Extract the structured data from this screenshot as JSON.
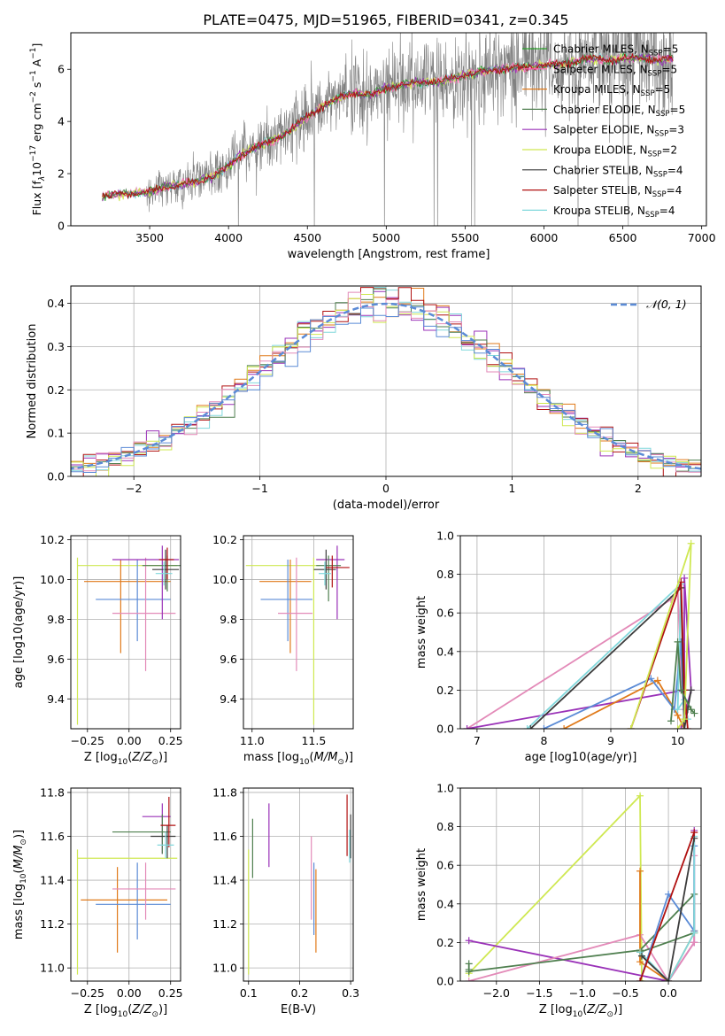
{
  "figure": {
    "title": "PLATE=0475, MJD=51965, FIBERID=0341, z=0.345"
  },
  "colors": {
    "chabrier_miles": "#2ca02c",
    "salpeter_miles": "#ff69b4",
    "kroupa_miles": "#e07a1a",
    "chabrier_elodie": "#4f7f4f",
    "salpeter_elodie": "#9a32b8",
    "kroupa_elodie": "#cfe852",
    "chabrier_stelib": "#3c3c3c",
    "salpeter_stelib": "#b01010",
    "kroupa_stelib": "#80d8dc",
    "blue": "#5b8bd6",
    "pink": "#e38ab8",
    "data": "#808080",
    "normal": "#5b8bd6"
  },
  "chart_data": [
    {
      "type": "line",
      "id": "spectrum",
      "xlabel": "wavelength [Angstrom, rest frame]",
      "ylabel": "Flux [f$_\\lambda$10$^{-17}$ erg cm$^{-2}$ s$^{-1}$ A$^{-1}$]",
      "xlim": [
        3000,
        7030
      ],
      "ylim": [
        0,
        7.4
      ],
      "xticks": [
        "3500",
        "4000",
        "4500",
        "5000",
        "5500",
        "6000",
        "6500",
        "7000"
      ],
      "yticks": [
        "0",
        "2",
        "4",
        "6"
      ],
      "legend_position": "top-right",
      "legend": [
        {
          "name": "Chabrier MILES, N",
          "sub": "SSP",
          "tail": "=5"
        },
        {
          "name": "Salpeter MILES, N",
          "sub": "SSP",
          "tail": "=5"
        },
        {
          "name": "Kroupa MILES, N",
          "sub": "SSP",
          "tail": "=5"
        },
        {
          "name": "Chabrier ELODIE, N",
          "sub": "SSP",
          "tail": "=5"
        },
        {
          "name": "Salpeter ELODIE, N",
          "sub": "SSP",
          "tail": "=3"
        },
        {
          "name": "Kroupa ELODIE, N",
          "sub": "SSP",
          "tail": "=2"
        },
        {
          "name": "Chabrier STELIB, N",
          "sub": "SSP",
          "tail": "=4"
        },
        {
          "name": "Salpeter STELIB, N",
          "sub": "SSP",
          "tail": "=4"
        },
        {
          "name": "Kroupa STELIB, N",
          "sub": "SSP",
          "tail": "=4"
        }
      ],
      "model_continuum": {
        "x": [
          3200,
          3300,
          3400,
          3500,
          3600,
          3700,
          3800,
          3900,
          4000,
          4100,
          4200,
          4300,
          4400,
          4500,
          4600,
          4700,
          4800,
          4900,
          5000,
          5100,
          5200,
          5300,
          5400,
          5500,
          5600,
          5700,
          5800,
          5900,
          6000,
          6100,
          6200,
          6300,
          6400,
          6500,
          6600,
          6700,
          6800
        ],
        "y": [
          1.15,
          1.2,
          1.25,
          1.3,
          1.5,
          1.6,
          1.7,
          1.9,
          2.3,
          2.8,
          3.1,
          3.3,
          3.7,
          4.2,
          4.6,
          4.9,
          5.1,
          5.0,
          5.3,
          5.4,
          5.5,
          5.5,
          5.6,
          5.8,
          5.9,
          6.0,
          6.05,
          6.1,
          6.15,
          6.2,
          6.3,
          6.4,
          6.35,
          6.4,
          6.45,
          6.35,
          6.4
        ]
      }
    },
    {
      "type": "bar",
      "id": "residuals",
      "xlabel": "(data-model)/error",
      "ylabel": "Normed distribution",
      "xlim": [
        -2.5,
        2.5
      ],
      "ylim": [
        0,
        0.44
      ],
      "xticks": [
        "−2",
        "−1",
        "0",
        "1",
        "2"
      ],
      "yticks": [
        "0.0",
        "0.1",
        "0.2",
        "0.3",
        "0.4"
      ],
      "legend_position": "top-right",
      "legend": [
        {
          "name": "𝒩(0, 1)"
        }
      ],
      "bin_width": 0.1
    },
    {
      "type": "scatter",
      "id": "age-vs-Z",
      "xlabel": "Z [log",
      "xlabel_parts": [
        "Z [log",
        "10",
        "(",
        "Z/Z",
        "⊙",
        ")]"
      ],
      "ylabel_parts": [
        "age  [log",
        "10",
        "(",
        "age/yr",
        ")]"
      ],
      "xlim": [
        -0.35,
        0.31
      ],
      "ylim": [
        9.25,
        10.22
      ],
      "xticks": [
        "−0.25",
        "0.00",
        "0.25"
      ],
      "yticks": [
        "9.4",
        "9.6",
        "9.8",
        "10.0",
        "10.2"
      ],
      "points": [
        {
          "x": -0.31,
          "y": 10.07,
          "xerr": [
            0.0,
            0.6
          ],
          "yerr": [
            0.8,
            0.04
          ],
          "c": "kroupa_elodie"
        },
        {
          "x": -0.05,
          "y": 9.99,
          "xerr": [
            0.22,
            0.3
          ],
          "yerr": [
            0.36,
            0.11
          ],
          "c": "kroupa_miles"
        },
        {
          "x": 0.05,
          "y": 9.9,
          "xerr": [
            0.25,
            0.2
          ],
          "yerr": [
            0.21,
            0.2
          ],
          "c": "blue"
        },
        {
          "x": 0.1,
          "y": 9.83,
          "xerr": [
            0.2,
            0.18
          ],
          "yerr": [
            0.29,
            0.28
          ],
          "c": "pink"
        },
        {
          "x": 0.2,
          "y": 10.1,
          "xerr": [
            0.3,
            0.1
          ],
          "yerr": [
            0.3,
            0.07
          ],
          "c": "salpeter_elodie"
        },
        {
          "x": 0.23,
          "y": 10.07,
          "xerr": [
            0.15,
            0.1
          ],
          "yerr": [
            0.13,
            0.05
          ],
          "c": "chabrier_elodie"
        },
        {
          "x": 0.22,
          "y": 10.05,
          "xerr": [
            0.08,
            0.08
          ],
          "yerr": [
            0.1,
            0.1
          ],
          "c": "chabrier_stelib"
        },
        {
          "x": 0.23,
          "y": 10.1,
          "xerr": [
            0.05,
            0.04
          ],
          "yerr": [
            0.1,
            0.06
          ],
          "c": "salpeter_stelib"
        },
        {
          "x": 0.21,
          "y": 10.03,
          "xerr": [
            0.05,
            0.05
          ],
          "yerr": [
            0.06,
            0.06
          ],
          "c": "kroupa_stelib"
        }
      ]
    },
    {
      "type": "scatter",
      "id": "age-vs-mass",
      "xlabel_parts": [
        "mass [log",
        "10",
        "(",
        "M/M",
        "⊙",
        ")]"
      ],
      "xlim": [
        10.93,
        11.82
      ],
      "ylim": [
        9.25,
        10.22
      ],
      "xticks": [
        "11.0",
        "11.5"
      ],
      "yticks": [
        "9.4",
        "9.6",
        "9.8",
        "10.0",
        "10.2"
      ],
      "points": [
        {
          "x": 11.5,
          "y": 10.07,
          "xerr": [
            0.55,
            0.05
          ],
          "yerr": [
            0.8,
            0.04
          ],
          "c": "kroupa_elodie"
        },
        {
          "x": 11.31,
          "y": 9.99,
          "xerr": [
            0.25,
            0.17
          ],
          "yerr": [
            0.36,
            0.11
          ],
          "c": "kroupa_miles"
        },
        {
          "x": 11.29,
          "y": 9.9,
          "xerr": [
            0.22,
            0.2
          ],
          "yerr": [
            0.21,
            0.2
          ],
          "c": "blue"
        },
        {
          "x": 11.36,
          "y": 9.83,
          "xerr": [
            0.15,
            0.13
          ],
          "yerr": [
            0.29,
            0.28
          ],
          "c": "pink"
        },
        {
          "x": 11.69,
          "y": 10.1,
          "xerr": [
            0.17,
            0.06
          ],
          "yerr": [
            0.3,
            0.07
          ],
          "c": "salpeter_elodie"
        },
        {
          "x": 11.62,
          "y": 10.07,
          "xerr": [
            0.1,
            0.1
          ],
          "yerr": [
            0.18,
            0.05
          ],
          "c": "chabrier_elodie"
        },
        {
          "x": 11.6,
          "y": 10.05,
          "xerr": [
            0.1,
            0.08
          ],
          "yerr": [
            0.1,
            0.1
          ],
          "c": "chabrier_stelib"
        },
        {
          "x": 11.65,
          "y": 10.06,
          "xerr": [
            0.05,
            0.14
          ],
          "yerr": [
            0.1,
            0.06
          ],
          "c": "salpeter_stelib"
        },
        {
          "x": 11.59,
          "y": 10.03,
          "xerr": [
            0.05,
            0.05
          ],
          "yerr": [
            0.06,
            0.06
          ],
          "c": "kroupa_stelib"
        }
      ]
    },
    {
      "type": "line",
      "id": "massweight-vs-age",
      "xlabel_parts": [
        "age  [log",
        "10",
        "(",
        "age/yr",
        ")]"
      ],
      "ylabel": "mass weight",
      "xlim": [
        6.75,
        10.35
      ],
      "ylim": [
        0,
        1.0
      ],
      "xticks": [
        "7",
        "8",
        "9",
        "10"
      ],
      "yticks": [
        "0.0",
        "0.2",
        "0.4",
        "0.6",
        "0.8",
        "1.0"
      ],
      "series": [
        {
          "c": "pink",
          "x": [
            6.85,
            9.9,
            10.0,
            10.05,
            10.1,
            10.1
          ],
          "y": [
            0.0,
            0.67,
            0.72,
            0.3,
            0.1,
            0.0
          ]
        },
        {
          "c": "salpeter_elodie",
          "x": [
            6.85,
            10.1,
            10.1,
            10.2,
            10.05
          ],
          "y": [
            0.0,
            0.2,
            0.78,
            0.2,
            0.0
          ]
        },
        {
          "c": "kroupa_miles",
          "x": [
            8.3,
            9.7,
            10.0,
            10.1
          ],
          "y": [
            0.0,
            0.25,
            0.07,
            0.0
          ]
        },
        {
          "c": "blue",
          "x": [
            8.0,
            9.6,
            9.95,
            10.05,
            10.1
          ],
          "y": [
            0.0,
            0.26,
            0.1,
            0.45,
            0.0
          ]
        },
        {
          "c": "kroupa_stelib",
          "x": [
            7.75,
            10.05,
            10.0,
            10.1,
            10.15
          ],
          "y": [
            0.0,
            0.75,
            0.1,
            0.15,
            0.05
          ]
        },
        {
          "c": "chabrier_stelib",
          "x": [
            7.8,
            10.05,
            10.1,
            10.15,
            10.2
          ],
          "y": [
            0.0,
            0.73,
            0.0,
            0.1,
            0.2
          ]
        },
        {
          "c": "salpeter_stelib",
          "x": [
            9.3,
            10.05,
            10.1,
            10.15
          ],
          "y": [
            0.0,
            0.76,
            0.2,
            0.0
          ]
        },
        {
          "c": "kroupa_elodie",
          "x": [
            9.3,
            10.2,
            10.1,
            10.0
          ],
          "y": [
            0.0,
            0.96,
            0.05,
            0.0
          ]
        },
        {
          "c": "chabrier_elodie",
          "x": [
            9.9,
            10.0,
            10.05,
            10.2,
            10.25
          ],
          "y": [
            0.04,
            0.45,
            0.2,
            0.1,
            0.08
          ]
        }
      ]
    },
    {
      "type": "scatter",
      "id": "mass-vs-Z",
      "xlabel_parts": [
        "Z [log",
        "10",
        "(",
        "Z/Z",
        "⊙",
        ")]"
      ],
      "ylabel_parts": [
        "mass [log",
        "10",
        "(",
        "M/M",
        "⊙",
        ")]"
      ],
      "xlim": [
        -0.35,
        0.31
      ],
      "ylim": [
        10.94,
        11.82
      ],
      "xticks": [
        "−0.25",
        "0.00",
        "0.25"
      ],
      "yticks": [
        "11.0",
        "11.2",
        "11.4",
        "11.6",
        "11.8"
      ],
      "points": [
        {
          "x": -0.31,
          "y": 11.5,
          "xerr": [
            0.0,
            0.6
          ],
          "yerr": [
            0.53,
            0.04
          ],
          "c": "kroupa_elodie"
        },
        {
          "x": -0.07,
          "y": 11.31,
          "xerr": [
            0.22,
            0.3
          ],
          "yerr": [
            0.24,
            0.15
          ],
          "c": "kroupa_miles"
        },
        {
          "x": 0.05,
          "y": 11.29,
          "xerr": [
            0.25,
            0.2
          ],
          "yerr": [
            0.16,
            0.19
          ],
          "c": "blue"
        },
        {
          "x": 0.1,
          "y": 11.36,
          "xerr": [
            0.2,
            0.18
          ],
          "yerr": [
            0.14,
            0.12
          ],
          "c": "pink"
        },
        {
          "x": 0.2,
          "y": 11.69,
          "xerr": [
            0.12,
            0.05
          ],
          "yerr": [
            0.17,
            0.06
          ],
          "c": "salpeter_elodie"
        },
        {
          "x": 0.2,
          "y": 11.62,
          "xerr": [
            0.3,
            0.05
          ],
          "yerr": [
            0.1,
            0.08
          ],
          "c": "chabrier_elodie"
        },
        {
          "x": 0.23,
          "y": 11.6,
          "xerr": [
            0.1,
            0.05
          ],
          "yerr": [
            0.1,
            0.05
          ],
          "c": "chabrier_stelib"
        },
        {
          "x": 0.24,
          "y": 11.65,
          "xerr": [
            0.05,
            0.04
          ],
          "yerr": [
            0.1,
            0.13
          ],
          "c": "salpeter_stelib"
        },
        {
          "x": 0.22,
          "y": 11.56,
          "xerr": [
            0.05,
            0.05
          ],
          "yerr": [
            0.06,
            0.06
          ],
          "c": "kroupa_stelib"
        }
      ]
    },
    {
      "type": "scatter",
      "id": "mass-vs-EBV",
      "xlabel": "E(B-V)",
      "xlim": [
        0.09,
        0.305
      ],
      "ylim": [
        10.94,
        11.82
      ],
      "xticks": [
        "0.1",
        "0.2",
        "0.3"
      ],
      "yticks": [
        "11.0",
        "11.2",
        "11.4",
        "11.6",
        "11.8"
      ],
      "points": [
        {
          "x": 0.1,
          "y": 11.5,
          "yerr": [
            0.53,
            0.04
          ],
          "c": "kroupa_elodie"
        },
        {
          "x": 0.108,
          "y": 11.55,
          "yerr": [
            0.14,
            0.13
          ],
          "c": "chabrier_elodie"
        },
        {
          "x": 0.14,
          "y": 11.6,
          "yerr": [
            0.14,
            0.15
          ],
          "c": "salpeter_elodie"
        },
        {
          "x": 0.223,
          "y": 11.38,
          "yerr": [
            0.16,
            0.22
          ],
          "c": "pink"
        },
        {
          "x": 0.228,
          "y": 11.3,
          "yerr": [
            0.15,
            0.18
          ],
          "c": "blue"
        },
        {
          "x": 0.232,
          "y": 11.3,
          "yerr": [
            0.23,
            0.15
          ],
          "c": "kroupa_miles"
        },
        {
          "x": 0.293,
          "y": 11.65,
          "yerr": [
            0.14,
            0.14
          ],
          "c": "salpeter_stelib"
        },
        {
          "x": 0.298,
          "y": 11.58,
          "yerr": [
            0.1,
            0.05
          ],
          "c": "kroupa_stelib"
        },
        {
          "x": 0.3,
          "y": 11.6,
          "yerr": [
            0.1,
            0.1
          ],
          "c": "chabrier_stelib"
        }
      ]
    },
    {
      "type": "line",
      "id": "massweight-vs-Z",
      "xlabel_parts": [
        "Z [log",
        "10",
        "(",
        "Z/Z",
        "⊙",
        ")]"
      ],
      "ylabel": "mass weight",
      "xlim": [
        -2.42,
        0.38
      ],
      "ylim": [
        0,
        1.0
      ],
      "xticks": [
        "−2.0",
        "−1.5",
        "−1.0",
        "−0.5",
        "0.0"
      ],
      "yticks": [
        "0.0",
        "0.2",
        "0.4",
        "0.6",
        "0.8",
        "1.0"
      ],
      "series": [
        {
          "c": "kroupa_elodie",
          "x": [
            -2.32,
            -0.33,
            -0.31
          ],
          "y": [
            0.04,
            0.96,
            0.0
          ]
        },
        {
          "c": "salpeter_elodie",
          "x": [
            -2.32,
            0.0,
            0.3,
            0.3
          ],
          "y": [
            0.21,
            0.0,
            0.2,
            0.78
          ]
        },
        {
          "c": "pink",
          "x": [
            -2.32,
            -0.33,
            0.0,
            0.3,
            0.3
          ],
          "y": [
            0.0,
            0.24,
            0.0,
            0.2,
            0.65
          ]
        },
        {
          "c": "chabrier_elodie",
          "x": [
            -2.32,
            -0.33,
            0.3,
            0.3,
            -0.33
          ],
          "y": [
            0.05,
            0.16,
            0.45,
            0.25,
            0.15
          ]
        },
        {
          "c": "kroupa_miles",
          "x": [
            -0.33,
            -0.33,
            0.0,
            0.3,
            0.3
          ],
          "y": [
            0.57,
            0.1,
            0.0,
            0.25,
            0.26
          ]
        },
        {
          "c": "blue",
          "x": [
            -0.33,
            0.0,
            0.3,
            0.3
          ],
          "y": [
            0.0,
            0.45,
            0.26,
            0.7
          ]
        },
        {
          "c": "kroupa_stelib",
          "x": [
            -0.33,
            0.0,
            0.3,
            0.3
          ],
          "y": [
            0.15,
            0.0,
            0.25,
            0.75
          ]
        },
        {
          "c": "chabrier_stelib",
          "x": [
            -0.31,
            0.0,
            0.3
          ],
          "y": [
            0.13,
            0.0,
            0.74
          ]
        },
        {
          "c": "salpeter_stelib",
          "x": [
            -0.33,
            0.3
          ],
          "y": [
            0.0,
            0.77
          ]
        },
        {
          "c": "chabrier_elodie",
          "x": [
            -2.32,
            -2.32
          ],
          "y": [
            0.09,
            0.06
          ]
        }
      ]
    }
  ]
}
